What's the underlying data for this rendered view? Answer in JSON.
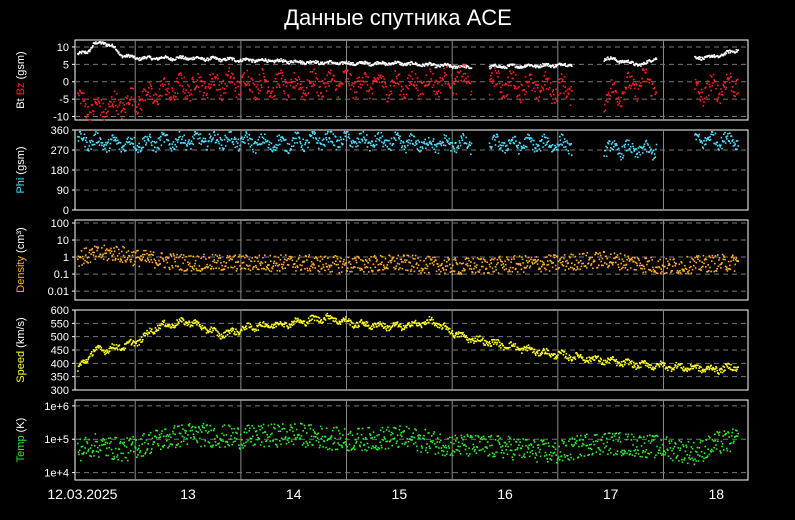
{
  "chart_data": {
    "type": "scatter",
    "title": "Данные спутника ACE",
    "x_tick_labels": [
      "12.03.2025",
      "13",
      "14",
      "15",
      "16",
      "17",
      "18"
    ],
    "x_range_days": [
      11.93,
      18.3
    ],
    "grid": true,
    "background": "#000000",
    "panels": [
      {
        "id": "bt-bz",
        "ylabel_parts": [
          {
            "text": "Bt ",
            "color": "#ffffff"
          },
          {
            "text": "Bz",
            "color": "#ff2020"
          },
          {
            "text": " (gsm)",
            "color": "#ffffff"
          }
        ],
        "scale": "linear",
        "ylim": [
          -11,
          12
        ],
        "yticks": [
          {
            "value": 10,
            "label": "10"
          },
          {
            "value": 5,
            "label": "5"
          },
          {
            "value": 0,
            "label": "0"
          },
          {
            "value": -5,
            "label": "-5"
          },
          {
            "value": -10,
            "label": "-10"
          }
        ],
        "series": [
          {
            "name": "Bt",
            "color": "#ffffff",
            "x": [
              11.95,
              12.05,
              12.1,
              12.2,
              12.3,
              12.35,
              12.5,
              13.0,
              13.5,
              14.0,
              14.5,
              15.0,
              15.3,
              15.6,
              15.85,
              16.5,
              16.8,
              16.95,
              17.3,
              17.4,
              17.8,
              18.0,
              18.2
            ],
            "y": [
              8,
              9,
              11,
              11.5,
              10,
              8,
              7,
              7,
              6.5,
              6,
              5.5,
              5.5,
              5,
              4.5,
              4.5,
              5,
              5.5,
              7,
              5,
              7,
              7,
              7.5,
              9.5
            ],
            "noise": 0.6
          },
          {
            "name": "Bz",
            "color": "#ff2020",
            "x": [
              11.95,
              12.1,
              12.4,
              12.6,
              13.0,
              13.5,
              14.0,
              14.5,
              15.0,
              15.3,
              15.6,
              15.85,
              16.5,
              16.8,
              16.95,
              17.3,
              17.4,
              17.8,
              18.2
            ],
            "y": [
              -5,
              -8,
              -6,
              -4,
              -1,
              0,
              -1,
              0,
              -1,
              0,
              1,
              0,
              -2,
              -2,
              -4,
              0,
              0,
              -3,
              0
            ],
            "noise": 4.0
          }
        ],
        "gaps": [
          [
            15.68,
            15.84
          ],
          [
            16.63,
            16.93
          ],
          [
            17.43,
            17.79
          ]
        ]
      },
      {
        "id": "phi",
        "ylabel_parts": [
          {
            "text": "Phi",
            "color": "#4fdfff"
          },
          {
            "text": " (gsm)",
            "color": "#ffffff"
          }
        ],
        "scale": "linear",
        "ylim": [
          0,
          360
        ],
        "yticks": [
          {
            "value": 360,
            "label": "360"
          },
          {
            "value": 270,
            "label": "270"
          },
          {
            "value": 180,
            "label": "180"
          },
          {
            "value": 90,
            "label": "90"
          },
          {
            "value": 0,
            "label": "0"
          }
        ],
        "series": [
          {
            "name": "Phi",
            "color": "#4fdfff",
            "x": [
              11.95,
              12.3,
              12.8,
              13.3,
              13.8,
              14.3,
              14.8,
              15.3,
              15.85,
              16.5,
              16.95,
              17.35,
              17.8,
              18.2
            ],
            "y": [
              320,
              300,
              310,
              320,
              300,
              320,
              310,
              300,
              300,
              300,
              280,
              270,
              320,
              320
            ],
            "noise": 40
          }
        ],
        "gaps": [
          [
            15.68,
            15.84
          ],
          [
            16.63,
            16.93
          ],
          [
            17.43,
            17.79
          ]
        ]
      },
      {
        "id": "density",
        "ylabel_parts": [
          {
            "text": "Density",
            "color": "#ffb030"
          },
          {
            "text": " (cm³)",
            "color": "#ffffff"
          }
        ],
        "scale": "log",
        "ylim": [
          0.003,
          150
        ],
        "yticks": [
          {
            "value": 100,
            "label": "100"
          },
          {
            "value": 10,
            "label": "10"
          },
          {
            "value": 1,
            "label": "1"
          },
          {
            "value": 0.1,
            "label": "0.1"
          },
          {
            "value": 0.01,
            "label": "0.01"
          }
        ],
        "series": [
          {
            "name": "Density",
            "color": "#ffb030",
            "x": [
              11.95,
              12.1,
              12.3,
              12.5,
              13.0,
              13.5,
              14.0,
              14.5,
              15.0,
              15.5,
              16.0,
              16.5,
              16.95,
              17.5,
              18.0,
              18.2
            ],
            "y": [
              1.0,
              1.5,
              2.0,
              1.0,
              0.5,
              0.5,
              0.5,
              0.4,
              0.5,
              0.3,
              0.4,
              0.5,
              0.8,
              0.3,
              0.5,
              0.5
            ],
            "noise": 0.5
          }
        ],
        "gaps": []
      },
      {
        "id": "speed",
        "ylabel_parts": [
          {
            "text": "Speed",
            "color": "#ffff20"
          },
          {
            "text": " (km/s)",
            "color": "#ffffff"
          }
        ],
        "scale": "linear",
        "ylim": [
          300,
          600
        ],
        "yticks": [
          {
            "value": 600,
            "label": "600"
          },
          {
            "value": 550,
            "label": "550"
          },
          {
            "value": 500,
            "label": "500"
          },
          {
            "value": 450,
            "label": "450"
          },
          {
            "value": 400,
            "label": "400"
          },
          {
            "value": 350,
            "label": "350"
          },
          {
            "value": 300,
            "label": "300"
          }
        ],
        "series": [
          {
            "name": "Speed",
            "color": "#ffff20",
            "x": [
              11.95,
              12.1,
              12.3,
              12.5,
              12.7,
              13.0,
              13.3,
              13.6,
              14.0,
              14.3,
              14.6,
              15.0,
              15.3,
              15.6,
              16.0,
              16.4,
              16.8,
              17.2,
              17.6,
              18.0,
              18.2
            ],
            "y": [
              380,
              450,
              460,
              480,
              540,
              560,
              510,
              540,
              555,
              575,
              550,
              540,
              560,
              500,
              470,
              440,
              420,
              400,
              390,
              380,
              390
            ],
            "noise": 16
          }
        ],
        "gaps": []
      },
      {
        "id": "temp",
        "ylabel_parts": [
          {
            "text": "Temp",
            "color": "#30ee30"
          },
          {
            "text": " (K)",
            "color": "#ffffff"
          }
        ],
        "scale": "log",
        "ylim": [
          6000,
          1500000
        ],
        "yticks": [
          {
            "value": 1000000,
            "label": "1e+6"
          },
          {
            "value": 100000,
            "label": "1e+5"
          },
          {
            "value": 10000,
            "label": "1e+4"
          }
        ],
        "series": [
          {
            "name": "Temp",
            "color": "#30ee30",
            "x": [
              11.95,
              12.1,
              12.4,
              12.7,
              13.0,
              13.5,
              14.0,
              14.5,
              15.0,
              15.5,
              16.0,
              16.5,
              16.8,
              17.0,
              17.5,
              17.8,
              18.0,
              18.2
            ],
            "y": [
              50000,
              70000,
              50000,
              100000,
              150000,
              120000,
              150000,
              100000,
              120000,
              70000,
              60000,
              40000,
              80000,
              80000,
              60000,
              40000,
              80000,
              100000
            ],
            "noise": 0.35
          }
        ],
        "gaps": []
      }
    ]
  }
}
